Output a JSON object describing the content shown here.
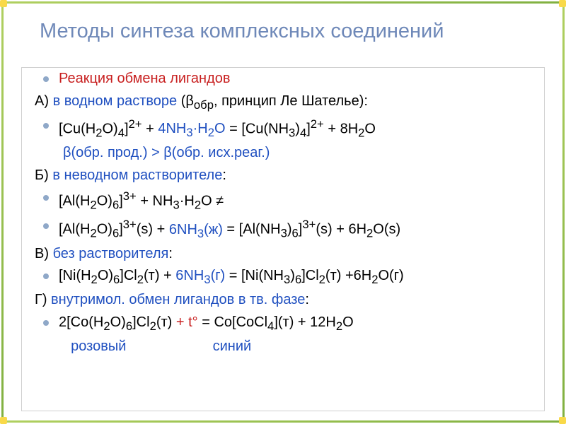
{
  "title": "Методы синтеза комплексных соединений",
  "colors": {
    "title": "#6e88b8",
    "red": "#c82020",
    "blue": "#2050c0",
    "black": "#000000",
    "bullet": "#8fa8c8",
    "border_green": "#80b040",
    "corner": "#f9d949",
    "box_border": "#d0d0d0"
  },
  "fontsize": {
    "title": 29,
    "body": 20
  },
  "lines": [
    {
      "bullet": true,
      "class": "red",
      "text": "Реакция обмена лигандов"
    },
    {
      "bullet": false,
      "class": "black",
      "html": "А) <span class='blue'>в водном растворе</span> (β<sub>обр</sub>, принцип Ле Шателье):"
    },
    {
      "bullet": true,
      "class": "black",
      "html": "[Cu(H<sub>2</sub>O)<sub>4</sub>]<sup>2+</sup> + <span class='blue'>4NH<sub>3</sub>·H<sub>2</sub>O</span> = [Cu(NH<sub>3</sub>)<sub>4</sub>]<sup>2+</sup> + 8H<sub>2</sub>O"
    },
    {
      "bullet": false,
      "class": "blue",
      "indent": true,
      "html": "β(обр. прод.) &gt; β(обр. исх.реаг.)"
    },
    {
      "bullet": false,
      "class": "black",
      "html": "Б) <span class='blue'>в неводном растворителе</span>:"
    },
    {
      "bullet": true,
      "class": "black",
      "html": "[Al(H<sub>2</sub>O)<sub>6</sub>]<sup>3+</sup> + NH<sub>3</sub>·H<sub>2</sub>O ≠"
    },
    {
      "bullet": true,
      "class": "black",
      "html": "[Al(H<sub>2</sub>O)<sub>6</sub>]<sup>3+</sup>(s) + <span class='blue'>6NH<sub>3</sub>(ж)</span> = [Al(NH<sub>3</sub>)<sub>6</sub>]<sup>3+</sup>(s) + 6H<sub>2</sub>O(s)"
    },
    {
      "bullet": false,
      "class": "black",
      "html": "В) <span class='blue'>без растворителя</span>:"
    },
    {
      "bullet": true,
      "class": "black",
      "html": "[Ni(H<sub>2</sub>O)<sub>6</sub>]Cl<sub>2</sub>(т) + <span class='blue'>6NH<sub>3</sub>(г)</span> = [Ni(NH<sub>3</sub>)<sub>6</sub>]Cl<sub>2</sub>(т) +6H<sub>2</sub>O(г)"
    },
    {
      "bullet": false,
      "class": "black",
      "html": "Г) <span class='blue'>внутримол. обмен лигандов в тв. фазе</span>:"
    },
    {
      "bullet": true,
      "class": "black",
      "html": "2[Co(H<sub>2</sub>O)<sub>6</sub>]Cl<sub>2</sub>(т) <span class='red'>+ t°</span> = Co[CoCl<sub>4</sub>](т) + 12H<sub>2</sub>O"
    },
    {
      "bullet": false,
      "class": "blue",
      "indent": true,
      "html": "&nbsp;&nbsp;розовый&nbsp;&nbsp;&nbsp;&nbsp;&nbsp;&nbsp;&nbsp;&nbsp;&nbsp;&nbsp;&nbsp;&nbsp;&nbsp;&nbsp;&nbsp;&nbsp;&nbsp;&nbsp;&nbsp;&nbsp;&nbsp;&nbsp;синий"
    }
  ]
}
